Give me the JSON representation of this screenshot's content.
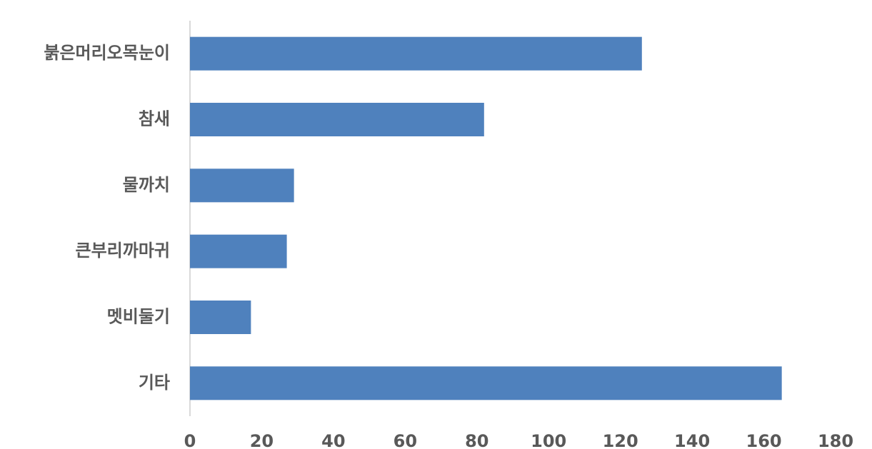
{
  "chart_data": {
    "type": "bar",
    "orientation": "horizontal",
    "categories": [
      "붉은머리오목눈이",
      "참새",
      "물까치",
      "큰부리까마귀",
      "멧비둘기",
      "기타"
    ],
    "values": [
      126,
      82,
      29,
      27,
      17,
      165
    ],
    "color": "#4f81bd",
    "xlim": [
      0,
      180
    ],
    "xticks": [
      0,
      20,
      40,
      60,
      80,
      100,
      120,
      140,
      160,
      180
    ],
    "grid": false
  }
}
